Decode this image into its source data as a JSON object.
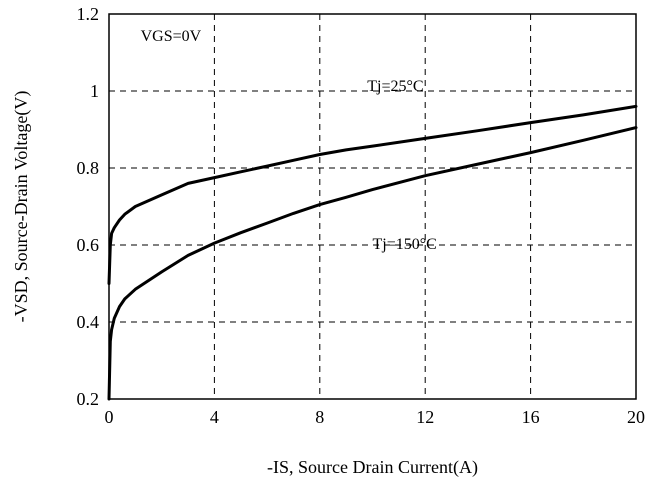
{
  "chart_data": {
    "type": "line",
    "xlabel": "-IS, Source Drain Current(A)",
    "ylabel": "-VSD, Source-Drain Voltage(V)",
    "xlim": [
      0,
      20
    ],
    "ylim": [
      0.2,
      1.2
    ],
    "x_ticks": [
      0,
      4,
      8,
      12,
      16,
      20
    ],
    "y_ticks": [
      0.2,
      0.4,
      0.6,
      0.8,
      1,
      1.2
    ],
    "x_tick_labels": [
      "0",
      "4",
      "8",
      "12",
      "16",
      "20"
    ],
    "y_tick_labels": [
      "0.2",
      "0.4",
      "0.6",
      "0.8",
      "1",
      "1.2"
    ],
    "grid": "dashed",
    "line_color": "#000000",
    "annotations": [
      {
        "text": "VGS=0V",
        "x": 1.2,
        "y": 1.13
      },
      {
        "text": "Tj=25°C",
        "x": 9.8,
        "y": 1.0
      },
      {
        "text": "Tj=150°C",
        "x": 10.0,
        "y": 0.59
      }
    ],
    "series": [
      {
        "x": [
          0.0,
          0.05,
          0.1,
          0.2,
          0.4,
          0.6,
          1.0,
          2.0,
          3.0,
          4.0,
          5.0,
          6.0,
          7.0,
          8.0,
          9.0,
          10.0,
          12.0,
          14.0,
          16.0,
          18.0,
          20.0
        ],
        "values": [
          0.5,
          0.6,
          0.63,
          0.645,
          0.665,
          0.68,
          0.7,
          0.73,
          0.76,
          0.775,
          0.79,
          0.805,
          0.82,
          0.835,
          0.847,
          0.857,
          0.877,
          0.897,
          0.918,
          0.938,
          0.96
        ]
      },
      {
        "x": [
          0.0,
          0.05,
          0.1,
          0.2,
          0.4,
          0.6,
          1.0,
          2.0,
          3.0,
          4.0,
          5.0,
          6.0,
          7.0,
          8.0,
          9.0,
          10.0,
          12.0,
          14.0,
          16.0,
          18.0,
          20.0
        ],
        "values": [
          0.2,
          0.35,
          0.38,
          0.41,
          0.44,
          0.46,
          0.485,
          0.53,
          0.573,
          0.605,
          0.632,
          0.657,
          0.682,
          0.705,
          0.724,
          0.744,
          0.78,
          0.81,
          0.84,
          0.872,
          0.905
        ]
      }
    ]
  }
}
